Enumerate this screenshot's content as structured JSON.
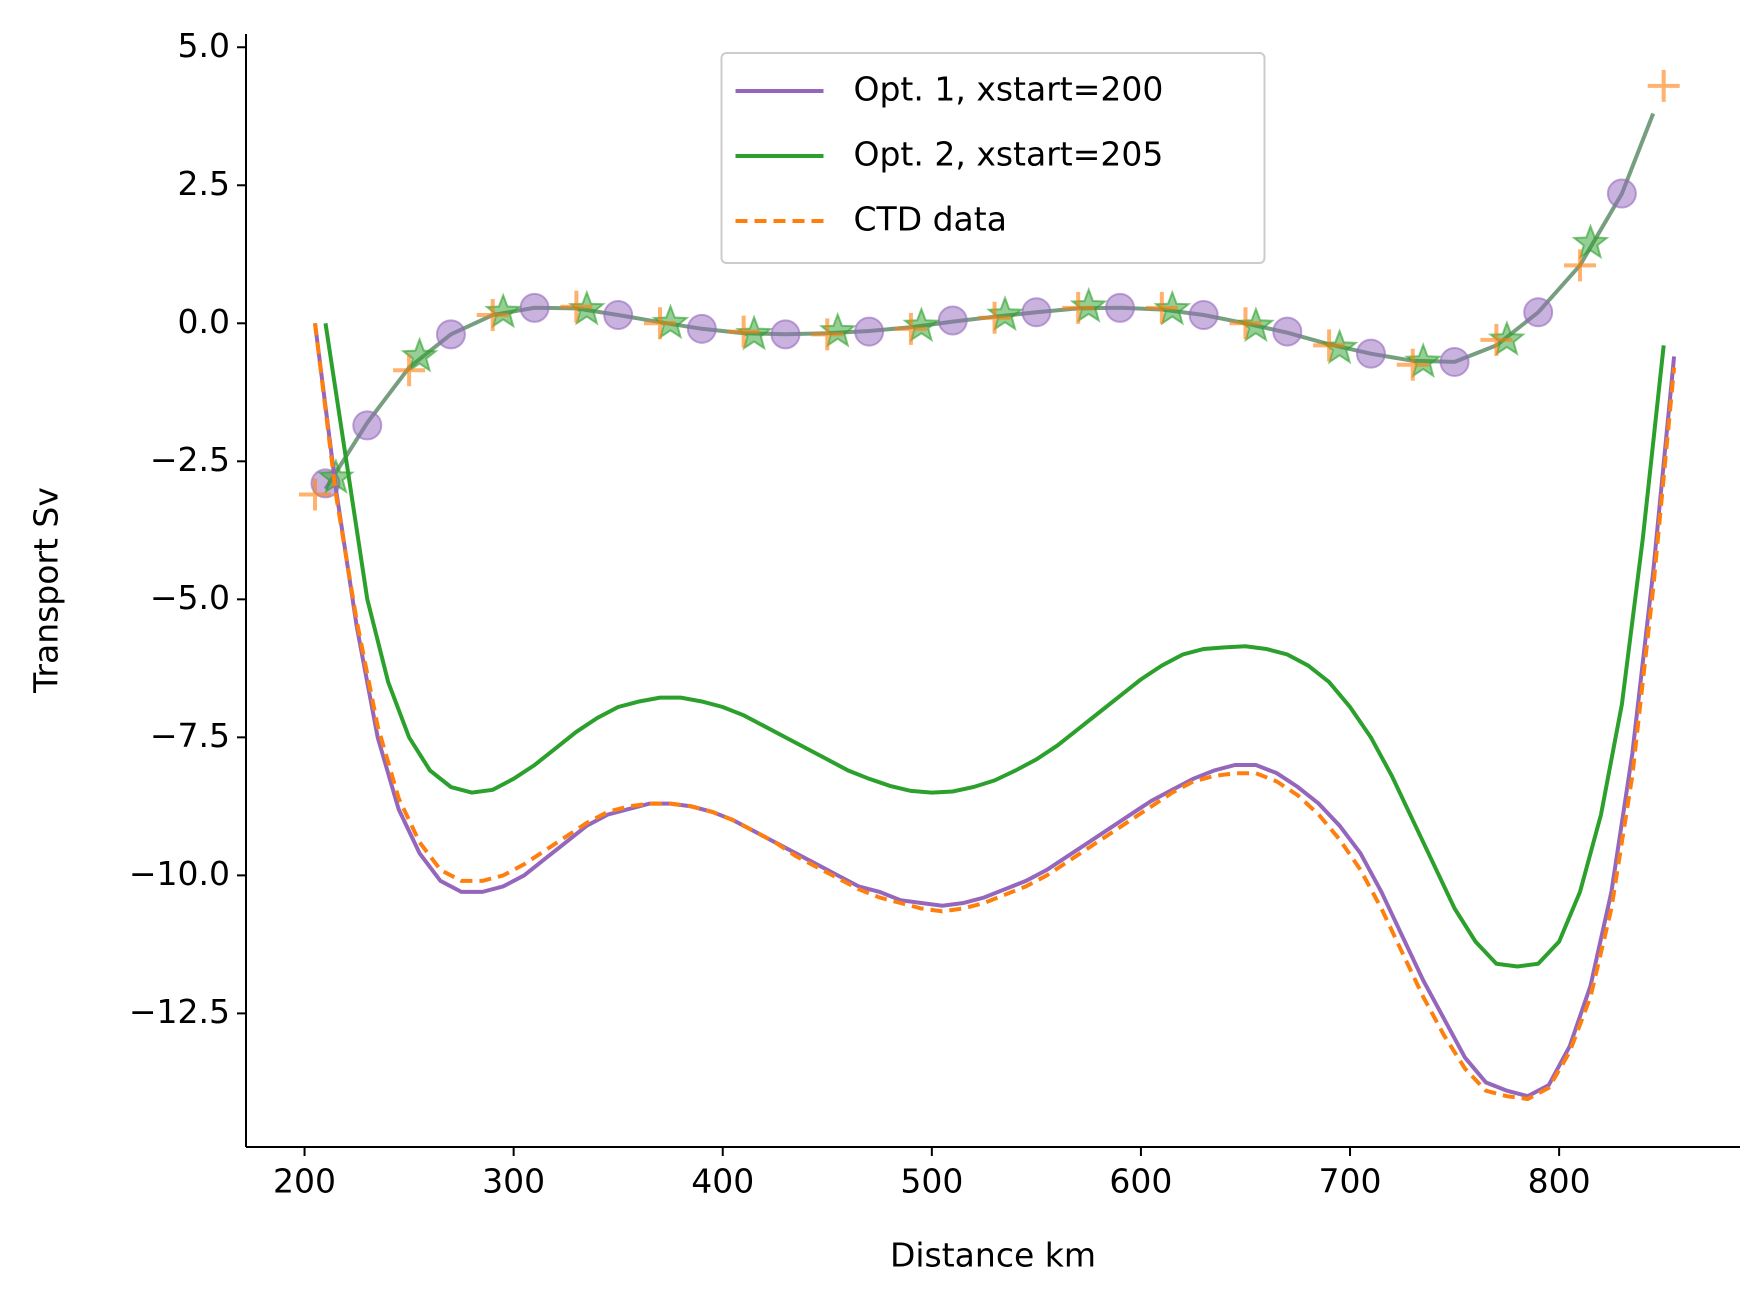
{
  "chart_data": {
    "type": "line",
    "xlabel": "Distance km",
    "ylabel": "Transport Sv",
    "xlim": [
      172,
      886.5
    ],
    "ylim": [
      -14.92,
      5.24
    ],
    "xticks": [
      200,
      300,
      400,
      500,
      600,
      700,
      800
    ],
    "yticks": [
      {
        "value": 5.0,
        "label": "5.0"
      },
      {
        "value": 2.5,
        "label": "2.5"
      },
      {
        "value": 0.0,
        "label": "0.0"
      },
      {
        "value": -2.5,
        "label": "−2.5"
      },
      {
        "value": -5.0,
        "label": "−5.0"
      },
      {
        "value": -7.5,
        "label": "−7.5"
      },
      {
        "value": -10.0,
        "label": "−10.0"
      },
      {
        "value": -12.5,
        "label": "−12.5"
      }
    ],
    "legend": "upper center",
    "series": [
      {
        "kind": "line",
        "color": "#5f8d68",
        "alpha": 0.85,
        "x": [
          210,
          230,
          250,
          270,
          290,
          310,
          330,
          350,
          370,
          390,
          410,
          430,
          450,
          470,
          490,
          510,
          530,
          550,
          570,
          590,
          610,
          630,
          650,
          670,
          690,
          710,
          730,
          750,
          770,
          790,
          810,
          830,
          845
        ],
        "values": [
          -3.0,
          -1.8,
          -0.8,
          -0.2,
          0.15,
          0.28,
          0.27,
          0.15,
          0.02,
          -0.1,
          -0.18,
          -0.2,
          -0.18,
          -0.14,
          -0.07,
          0.03,
          0.12,
          0.2,
          0.27,
          0.28,
          0.25,
          0.15,
          0.0,
          -0.17,
          -0.38,
          -0.55,
          -0.68,
          -0.7,
          -0.4,
          0.2,
          1.05,
          2.35,
          3.8
        ]
      },
      {
        "kind": "scatter",
        "marker": "circle",
        "color": "#9467bd",
        "x": [
          210,
          230,
          270,
          310,
          350,
          390,
          430,
          470,
          510,
          550,
          590,
          630,
          670,
          710,
          750,
          790,
          830
        ],
        "values": [
          -2.9,
          -1.85,
          -0.2,
          0.28,
          0.15,
          -0.1,
          -0.2,
          -0.15,
          0.05,
          0.2,
          0.28,
          0.15,
          -0.15,
          -0.55,
          -0.7,
          0.2,
          2.35
        ]
      },
      {
        "kind": "scatter",
        "marker": "star",
        "color": "#2ca02c",
        "x": [
          215,
          255,
          295,
          335,
          375,
          415,
          455,
          495,
          535,
          575,
          615,
          655,
          695,
          735,
          775,
          815
        ],
        "values": [
          -2.8,
          -0.6,
          0.2,
          0.25,
          0.0,
          -0.2,
          -0.15,
          -0.05,
          0.15,
          0.3,
          0.25,
          -0.05,
          -0.45,
          -0.7,
          -0.3,
          1.45
        ]
      },
      {
        "kind": "scatter",
        "marker": "plus",
        "color": "#ff7f0e",
        "x": [
          205,
          250,
          290,
          330,
          370,
          410,
          450,
          490,
          530,
          570,
          610,
          650,
          690,
          730,
          770,
          810,
          850
        ],
        "values": [
          -3.1,
          -0.85,
          0.15,
          0.3,
          0.0,
          -0.15,
          -0.2,
          -0.1,
          0.1,
          0.28,
          0.28,
          0.0,
          -0.4,
          -0.75,
          -0.3,
          1.05,
          4.3
        ]
      },
      {
        "kind": "line",
        "name": "Opt. 1, xstart=200",
        "color": "#9467bd",
        "x": [
          205,
          215,
          225,
          235,
          245,
          255,
          265,
          275,
          285,
          295,
          305,
          315,
          325,
          335,
          345,
          355,
          365,
          375,
          385,
          395,
          405,
          415,
          425,
          435,
          445,
          455,
          465,
          475,
          485,
          495,
          505,
          515,
          525,
          535,
          545,
          555,
          565,
          575,
          585,
          595,
          605,
          615,
          625,
          635,
          645,
          655,
          665,
          675,
          685,
          695,
          705,
          715,
          725,
          735,
          745,
          755,
          765,
          775,
          785,
          795,
          805,
          815,
          825,
          835,
          845,
          855
        ],
        "values": [
          0.0,
          -3.0,
          -5.5,
          -7.5,
          -8.8,
          -9.6,
          -10.1,
          -10.3,
          -10.3,
          -10.2,
          -10.0,
          -9.7,
          -9.4,
          -9.1,
          -8.9,
          -8.8,
          -8.7,
          -8.7,
          -8.75,
          -8.85,
          -9.0,
          -9.2,
          -9.4,
          -9.6,
          -9.8,
          -10.0,
          -10.2,
          -10.3,
          -10.45,
          -10.5,
          -10.55,
          -10.5,
          -10.4,
          -10.25,
          -10.1,
          -9.9,
          -9.65,
          -9.4,
          -9.15,
          -8.9,
          -8.65,
          -8.45,
          -8.25,
          -8.1,
          -8.0,
          -8.0,
          -8.15,
          -8.4,
          -8.7,
          -9.1,
          -9.6,
          -10.3,
          -11.1,
          -11.9,
          -12.6,
          -13.3,
          -13.75,
          -13.9,
          -14.0,
          -13.8,
          -13.1,
          -12.0,
          -10.3,
          -7.8,
          -4.5,
          -0.6
        ]
      },
      {
        "kind": "line",
        "name": "Opt. 2, xstart=205",
        "color": "#2ca02c",
        "x": [
          210,
          220,
          230,
          240,
          250,
          260,
          270,
          280,
          290,
          300,
          310,
          320,
          330,
          340,
          350,
          360,
          370,
          380,
          390,
          400,
          410,
          420,
          430,
          440,
          450,
          460,
          470,
          480,
          490,
          500,
          510,
          520,
          530,
          540,
          550,
          560,
          570,
          580,
          590,
          600,
          610,
          620,
          630,
          640,
          650,
          660,
          670,
          680,
          690,
          700,
          710,
          720,
          730,
          740,
          750,
          760,
          770,
          780,
          790,
          800,
          810,
          820,
          830,
          840,
          850
        ],
        "values": [
          0.0,
          -2.5,
          -5.0,
          -6.5,
          -7.5,
          -8.1,
          -8.4,
          -8.5,
          -8.45,
          -8.25,
          -8.0,
          -7.7,
          -7.4,
          -7.15,
          -6.95,
          -6.85,
          -6.78,
          -6.78,
          -6.85,
          -6.95,
          -7.1,
          -7.3,
          -7.5,
          -7.7,
          -7.9,
          -8.1,
          -8.25,
          -8.38,
          -8.47,
          -8.5,
          -8.48,
          -8.4,
          -8.28,
          -8.1,
          -7.9,
          -7.65,
          -7.35,
          -7.05,
          -6.75,
          -6.45,
          -6.2,
          -6.0,
          -5.9,
          -5.87,
          -5.85,
          -5.9,
          -6.0,
          -6.2,
          -6.5,
          -6.95,
          -7.5,
          -8.2,
          -9.0,
          -9.8,
          -10.6,
          -11.2,
          -11.6,
          -11.65,
          -11.6,
          -11.2,
          -10.3,
          -8.9,
          -6.9,
          -3.9,
          -0.4
        ]
      },
      {
        "kind": "line",
        "name": "CTD data",
        "color": "#ff7f0e",
        "dash": true,
        "x": [
          205,
          215,
          225,
          235,
          245,
          255,
          265,
          275,
          285,
          295,
          305,
          315,
          325,
          335,
          345,
          355,
          365,
          375,
          385,
          395,
          405,
          415,
          425,
          435,
          445,
          455,
          465,
          475,
          485,
          495,
          505,
          515,
          525,
          535,
          545,
          555,
          565,
          575,
          585,
          595,
          605,
          615,
          625,
          635,
          645,
          655,
          665,
          675,
          685,
          695,
          705,
          715,
          725,
          735,
          745,
          755,
          765,
          775,
          785,
          795,
          805,
          815,
          825,
          835,
          845,
          855
        ],
        "values": [
          0.0,
          -3.1,
          -5.4,
          -7.3,
          -8.6,
          -9.4,
          -9.9,
          -10.1,
          -10.1,
          -10.0,
          -9.8,
          -9.55,
          -9.3,
          -9.05,
          -8.85,
          -8.75,
          -8.7,
          -8.7,
          -8.75,
          -8.85,
          -9.0,
          -9.2,
          -9.4,
          -9.65,
          -9.85,
          -10.05,
          -10.25,
          -10.4,
          -10.5,
          -10.6,
          -10.65,
          -10.6,
          -10.5,
          -10.35,
          -10.2,
          -10.0,
          -9.75,
          -9.5,
          -9.25,
          -9.0,
          -8.75,
          -8.5,
          -8.3,
          -8.2,
          -8.15,
          -8.15,
          -8.3,
          -8.55,
          -8.9,
          -9.35,
          -9.9,
          -10.6,
          -11.4,
          -12.2,
          -12.9,
          -13.5,
          -13.9,
          -14.0,
          -14.05,
          -13.85,
          -13.2,
          -12.2,
          -10.6,
          -8.2,
          -4.8,
          -0.8
        ]
      }
    ]
  }
}
